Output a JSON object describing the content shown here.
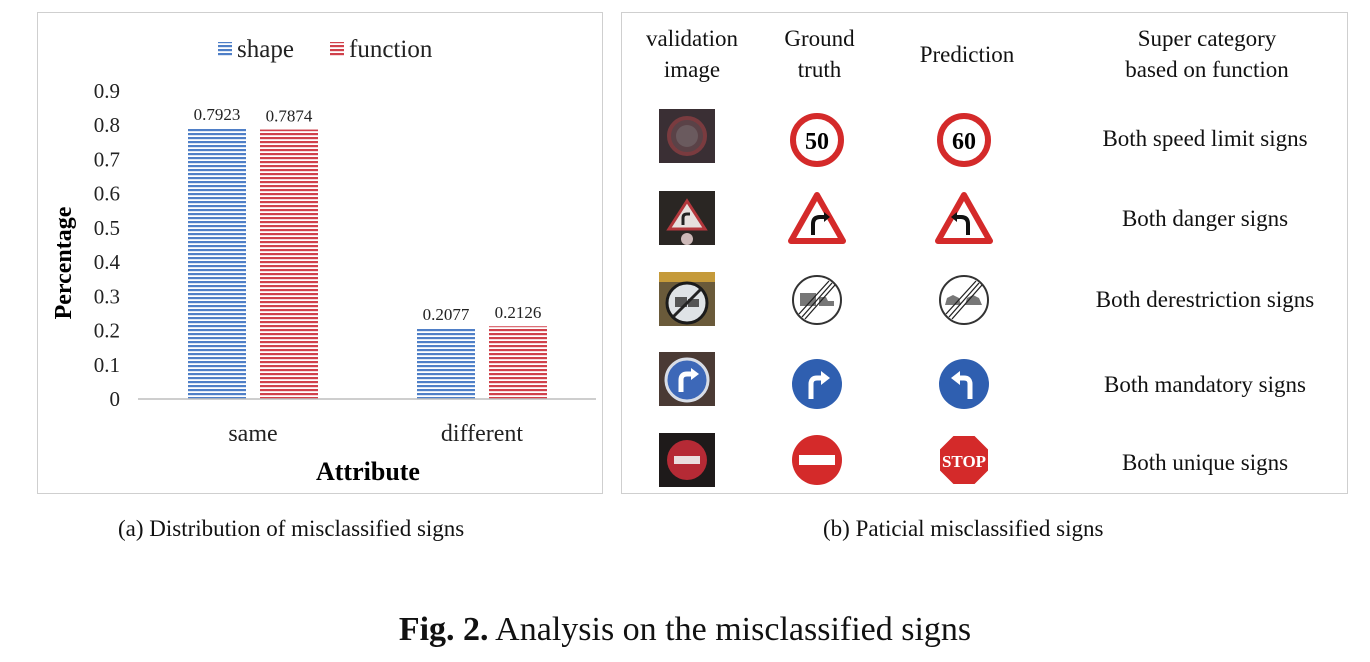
{
  "chart_data": {
    "type": "bar",
    "categories": [
      "same",
      "different"
    ],
    "series": [
      {
        "name": "shape",
        "values": [
          0.7923,
          0.2077
        ],
        "labels": [
          "0.7923",
          "0.2077"
        ],
        "color": "#4f7fc7"
      },
      {
        "name": "function",
        "values": [
          0.7874,
          0.2126
        ],
        "labels": [
          "0.7874",
          "0.2126"
        ],
        "color": "#d0414b"
      }
    ],
    "xlabel": "Attribute",
    "ylabel": "Percentage",
    "ylim": [
      0,
      0.9
    ],
    "yticks": [
      "0",
      "0.1",
      "0.2",
      "0.3",
      "0.4",
      "0.5",
      "0.6",
      "0.7",
      "0.8",
      "0.9"
    ],
    "legend": "top",
    "grid": false
  },
  "table": {
    "headers": [
      [
        "validation",
        "image"
      ],
      [
        "Ground",
        "truth"
      ],
      [
        "Prediction"
      ],
      [
        "Super category",
        "based on function"
      ]
    ],
    "rows": [
      {
        "category": "Both speed limit signs",
        "truth_sign": "speed-limit-50",
        "truth_text": "50",
        "pred_sign": "speed-limit-60",
        "pred_text": "60"
      },
      {
        "category": "Both danger signs",
        "truth_sign": "danger-curve-right",
        "pred_sign": "danger-curve-left"
      },
      {
        "category": "Both derestriction signs",
        "truth_sign": "end-no-overtaking-trucks",
        "pred_sign": "end-no-overtaking"
      },
      {
        "category": "Both mandatory signs",
        "truth_sign": "turn-right-ahead",
        "pred_sign": "turn-left-ahead"
      },
      {
        "category": "Both unique signs",
        "truth_sign": "no-entry",
        "pred_sign": "stop",
        "pred_text": "STOP"
      }
    ]
  },
  "captions": {
    "a": "(a) Distribution of misclassified signs",
    "b": "(b) Paticial misclassified signs",
    "fig_label": "Fig. 2.",
    "fig_text": " Analysis on the misclassified signs"
  },
  "colors": {
    "sign_red": "#d42a2a",
    "sign_blue": "#2f5fb0"
  }
}
